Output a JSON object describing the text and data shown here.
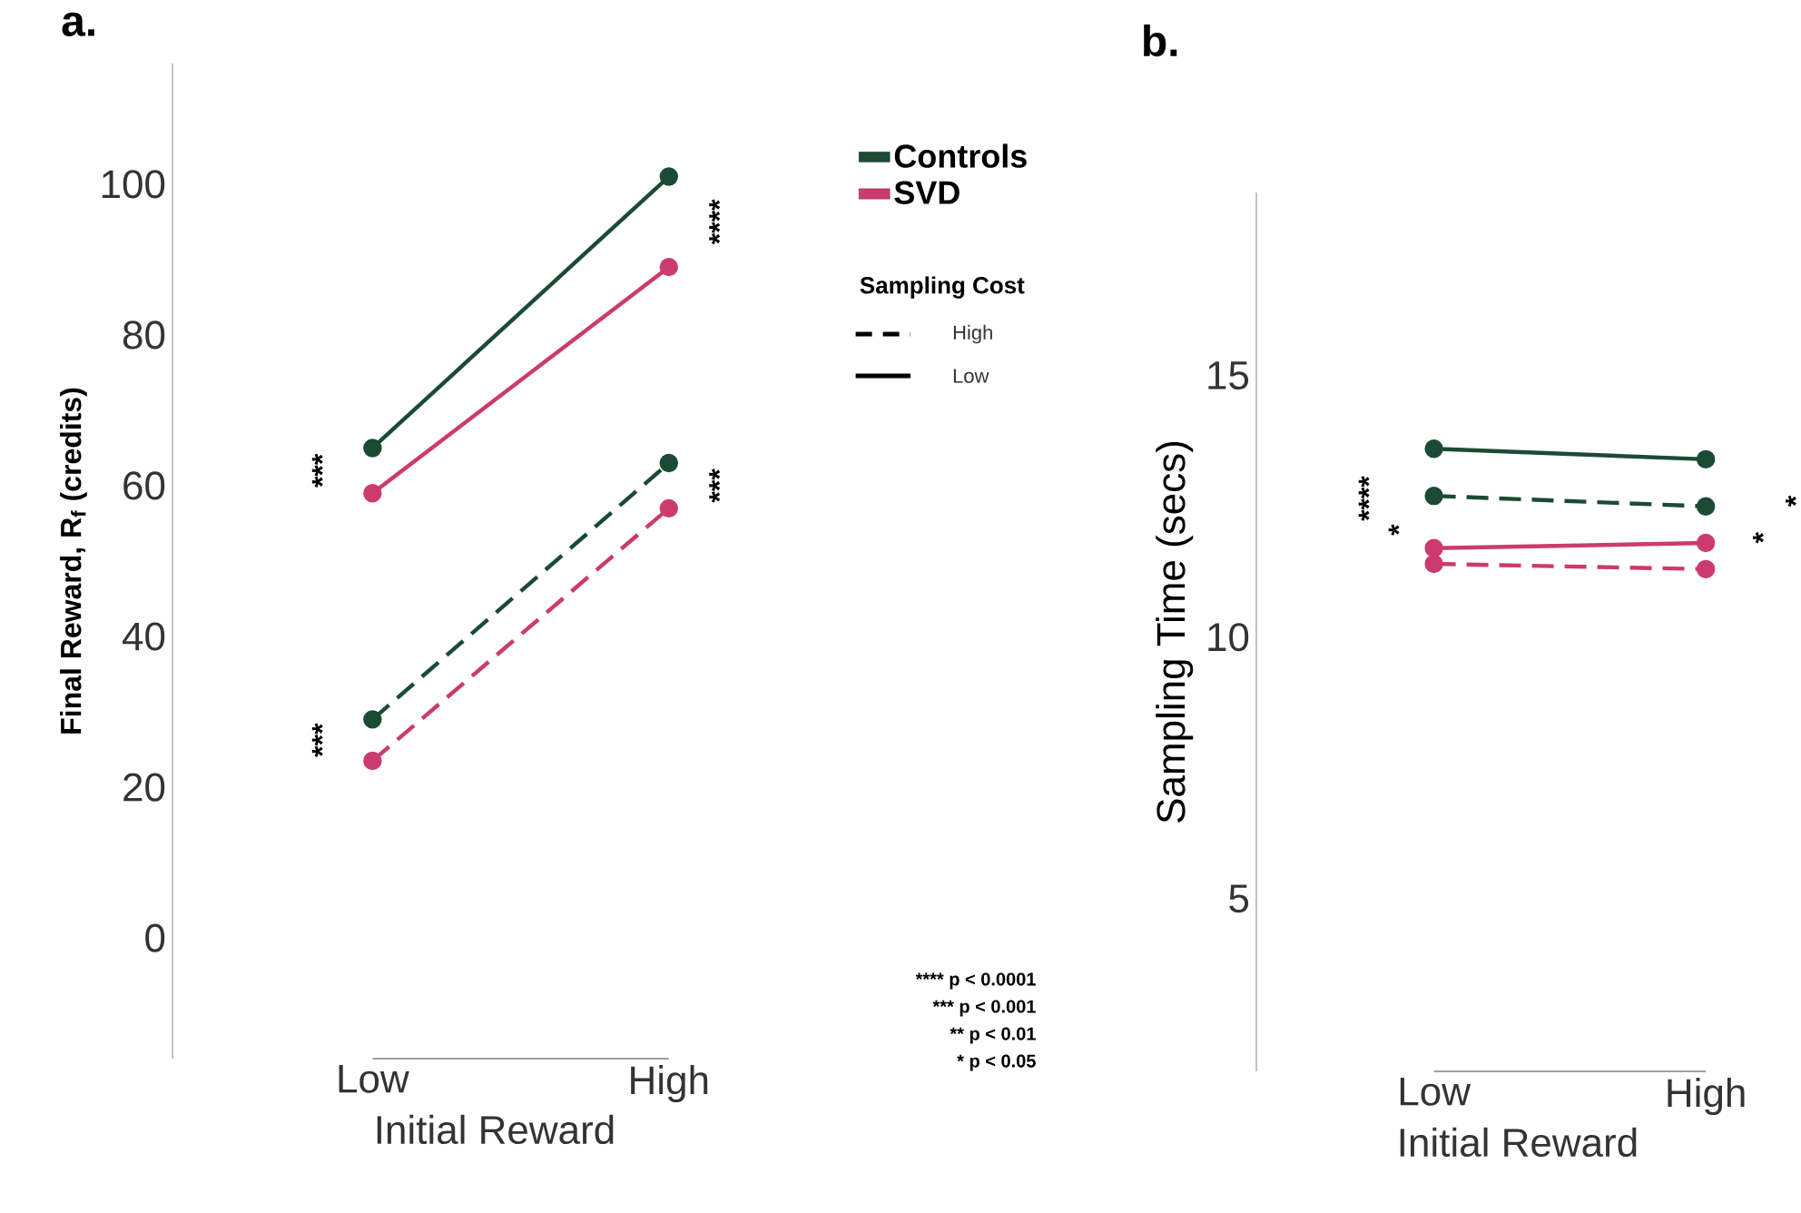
{
  "chart_data": [
    {
      "type": "line",
      "title": "a.",
      "xlabel": "Initial Reward",
      "ylabel": "**Final Reward, R$_{f}$ (credits)**",
      "categories": [
        "Low",
        "High"
      ],
      "ylim": [
        -16,
        116
      ],
      "yticks": [
        0,
        20,
        40,
        60,
        80,
        100
      ],
      "marker": "circle",
      "legend": "right",
      "legend_title": "Sampling Cost",
      "series": [
        {
          "name": "Controls",
          "color": "#1b4a35",
          "line_style": "solid",
          "values": [
            65,
            101
          ]
        },
        {
          "name": "SVD",
          "color": "#cc3a6e",
          "line_style": "solid",
          "values": [
            59,
            89
          ]
        },
        {
          "color": "#1b4a35",
          "line_style": "dashed",
          "values": [
            29,
            63
          ]
        },
        {
          "color": "#cc3a6e",
          "line_style": "dashed",
          "values": [
            23.5,
            57
          ]
        }
      ],
      "annotations": [
        "***",
        "***",
        "****",
        "***",
        "High",
        "Low",
        "**** p < 0.0001",
        "*** p < 0.001",
        "** p < 0.01",
        "* p < 0.05"
      ]
    },
    {
      "type": "line",
      "title": "b.",
      "xlabel": "Initial Reward",
      "ylabel": "Sampling Time (secs)",
      "categories": [
        "Low",
        "High"
      ],
      "ylim": [
        1.7,
        18.5
      ],
      "yticks": [
        5,
        10,
        15
      ],
      "marker": "circle",
      "series": [
        {
          "color": "#1b4a35",
          "line_style": "solid",
          "values": [
            13.6,
            13.4
          ]
        },
        {
          "color": "#1b4a35",
          "line_style": "dashed",
          "values": [
            12.7,
            12.5
          ]
        },
        {
          "color": "#cc3a6e",
          "line_style": "solid",
          "values": [
            11.7,
            11.8
          ]
        },
        {
          "color": "#cc3a6e",
          "line_style": "dashed",
          "values": [
            11.4,
            11.3
          ]
        }
      ],
      "annotations": [
        "****",
        "*",
        "*",
        "*"
      ]
    }
  ]
}
